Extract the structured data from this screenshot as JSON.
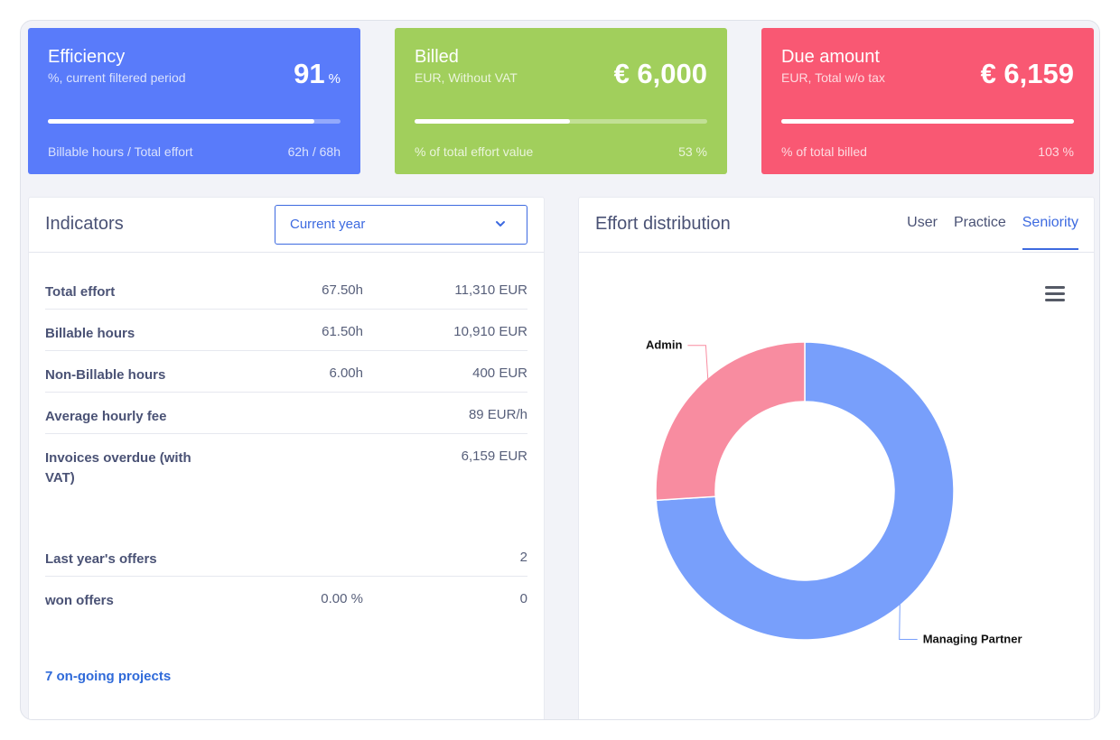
{
  "cards": {
    "efficiency": {
      "title": "Efficiency",
      "subtitle": "%, current filtered period",
      "value": "91",
      "unit": "%",
      "progress": 0.91,
      "footer_label": "Billable hours / Total effort",
      "footer_value": "62h / 68h",
      "color": "#597bfa"
    },
    "billed": {
      "title": "Billed",
      "subtitle": "EUR, Without VAT",
      "value": "€ 6,000",
      "progress": 0.53,
      "footer_label": "% of total effort value",
      "footer_value": "53 %",
      "color": "#a1cf5c"
    },
    "due": {
      "title": "Due amount",
      "subtitle": "EUR, Total w/o tax",
      "value": "€ 6,159",
      "progress": 1.0,
      "footer_label": "% of total billed",
      "footer_value": "103 %",
      "color": "#f95873"
    }
  },
  "indicators": {
    "title": "Indicators",
    "period_select": {
      "selected": "Current year",
      "icon": "chevron-down-icon"
    },
    "rows": [
      {
        "label": "Total effort",
        "hours": "67.50h",
        "value": "11,310 EUR"
      },
      {
        "label": "Billable hours",
        "hours": "61.50h",
        "value": "10,910 EUR"
      },
      {
        "label": "Non-Billable hours",
        "hours": "6.00h",
        "value": "400 EUR"
      },
      {
        "label": "Average hourly fee",
        "hours": "",
        "value": "89 EUR/h"
      },
      {
        "label": "Invoices overdue (with VAT)",
        "hours": "",
        "value": "6,159 EUR"
      },
      {
        "label": "Last year's offers",
        "hours": "",
        "value": "2"
      },
      {
        "label": "won offers",
        "hours": "0.00 %",
        "value": "0"
      }
    ],
    "projects_link": "7 on-going projects"
  },
  "effort": {
    "title": "Effort distribution",
    "tabs": [
      "User",
      "Practice",
      "Seniority"
    ],
    "active_tab": 2,
    "menu_icon": "hamburger-menu-icon",
    "chart_data": {
      "type": "pie",
      "donut": true,
      "slices": [
        {
          "label": "Managing Partner",
          "value": 74,
          "color": "#789ffb"
        },
        {
          "label": "Admin",
          "value": 26,
          "color": "#f88ca0"
        }
      ]
    }
  }
}
